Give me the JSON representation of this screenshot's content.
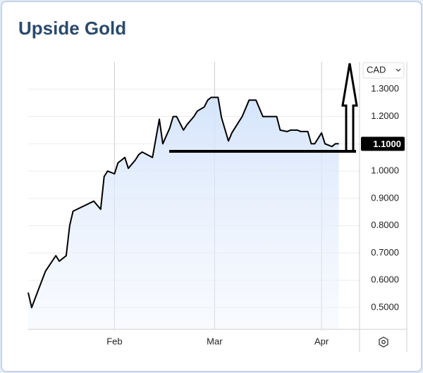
{
  "chart_data": {
    "type": "line",
    "title": "Upside Gold",
    "currency": "CAD",
    "color": "#000000",
    "x": [
      0,
      1,
      3,
      5,
      8,
      9,
      11,
      12,
      13,
      19,
      21,
      22,
      23,
      25,
      26,
      28,
      29,
      31,
      32,
      33,
      36,
      38,
      39,
      41,
      42,
      43,
      45,
      46,
      48,
      49,
      51,
      52,
      53,
      55,
      56,
      58,
      59,
      61,
      62,
      64,
      66,
      68,
      72,
      73,
      75,
      76,
      78,
      79,
      81,
      82,
      83,
      85,
      86,
      88,
      89,
      90
    ],
    "values": [
      0.555,
      0.5,
      0.567,
      0.633,
      0.69,
      0.67,
      0.69,
      0.8,
      0.853,
      0.89,
      0.86,
      0.98,
      1.0,
      0.99,
      1.03,
      1.05,
      1.01,
      1.04,
      1.06,
      1.07,
      1.05,
      1.19,
      1.1,
      1.157,
      1.2,
      1.2,
      1.15,
      1.17,
      1.2,
      1.22,
      1.235,
      1.26,
      1.27,
      1.27,
      1.196,
      1.11,
      1.14,
      1.18,
      1.2,
      1.26,
      1.26,
      1.2,
      1.2,
      1.15,
      1.145,
      1.15,
      1.15,
      1.145,
      1.145,
      1.1,
      1.1,
      1.14,
      1.1,
      1.09,
      1.1,
      1.1
    ],
    "xlim": [
      0,
      96
    ],
    "xticks": [
      {
        "value": 25,
        "label": "Feb"
      },
      {
        "value": 54,
        "label": "Mar"
      },
      {
        "value": 85,
        "label": "Apr"
      }
    ],
    "ylim": [
      0.42,
      1.4
    ],
    "yticks": [
      {
        "value": 0.5,
        "label": "0.5000"
      },
      {
        "value": 0.6,
        "label": "0.6000"
      },
      {
        "value": 0.7,
        "label": "0.7000"
      },
      {
        "value": 0.8,
        "label": "0.8000"
      },
      {
        "value": 0.9,
        "label": "0.9000"
      },
      {
        "value": 1.0,
        "label": "1.0000"
      },
      {
        "value": 1.1,
        "label": "1.1000"
      },
      {
        "value": 1.2,
        "label": "1.2000"
      },
      {
        "value": 1.3,
        "label": "1.3000"
      }
    ],
    "grid": true
  }
}
